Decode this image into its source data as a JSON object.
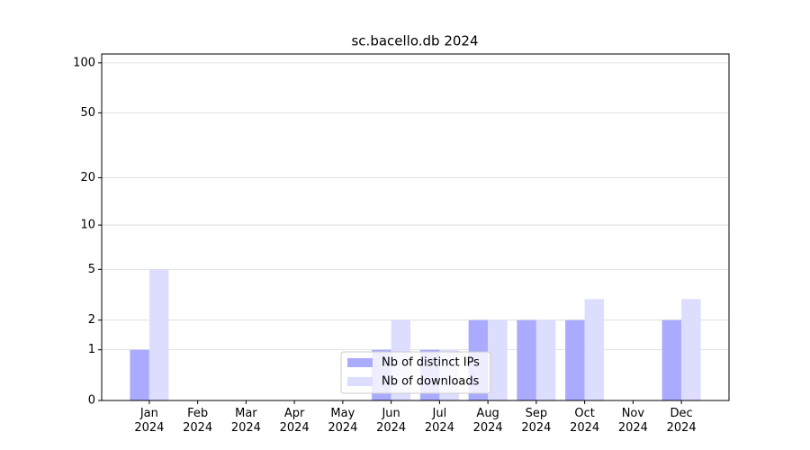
{
  "chart_data": {
    "type": "bar",
    "title": "sc.bacello.db 2024",
    "categories": [
      "Jan\n2024",
      "Feb\n2024",
      "Mar\n2024",
      "Apr\n2024",
      "May\n2024",
      "Jun\n2024",
      "Jul\n2024",
      "Aug\n2024",
      "Sep\n2024",
      "Oct\n2024",
      "Nov\n2024",
      "Dec\n2024"
    ],
    "series": [
      {
        "name": "Nb of distinct IPs",
        "color": "#aaaaff",
        "values": [
          1,
          0,
          0,
          0,
          0,
          1,
          1,
          2,
          2,
          2,
          0,
          2
        ]
      },
      {
        "name": "Nb of downloads",
        "color": "#ddddff",
        "values": [
          5,
          0,
          0,
          0,
          0,
          2,
          1,
          2,
          2,
          3,
          0,
          3
        ]
      }
    ],
    "yscale": "log1p",
    "ylim": [
      0,
      113
    ],
    "yticks": [
      0,
      1,
      2,
      5,
      10,
      20,
      50,
      100
    ],
    "grid": true,
    "legend": "lower center"
  }
}
